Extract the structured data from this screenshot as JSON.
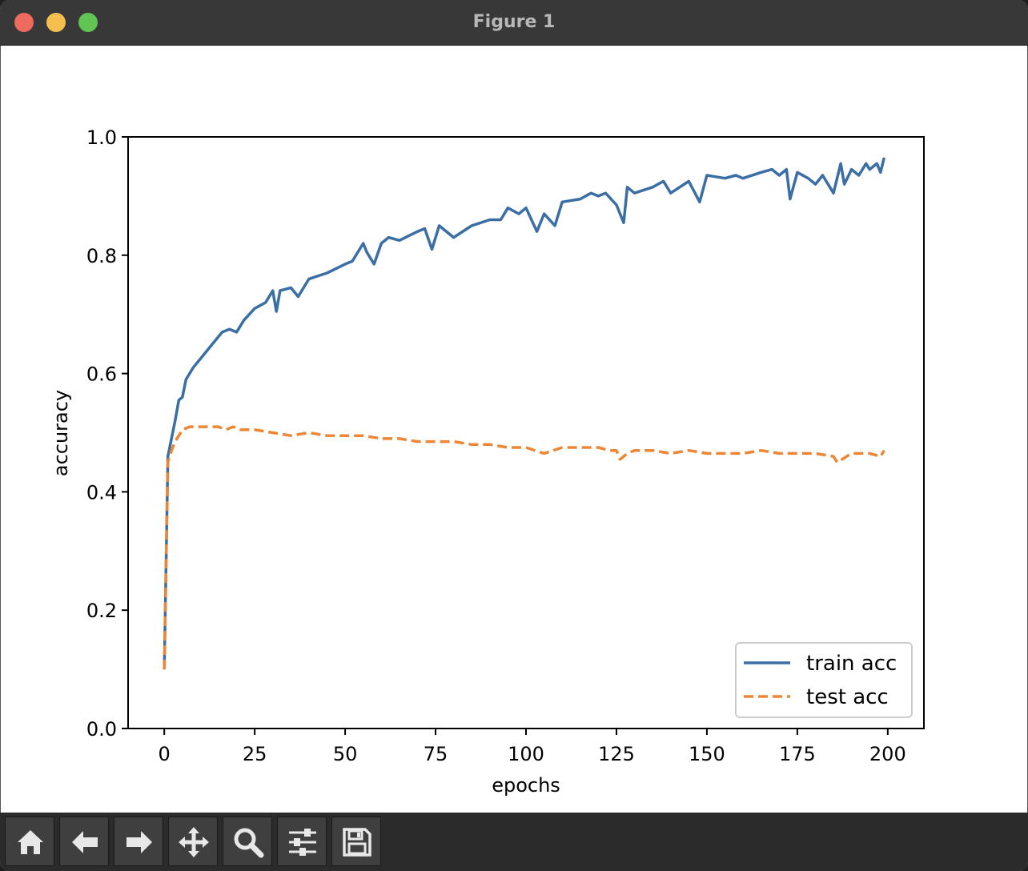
{
  "window": {
    "title": "Figure 1"
  },
  "toolbar": {
    "tools": [
      {
        "icon": "home-icon"
      },
      {
        "icon": "back-arrow-icon"
      },
      {
        "icon": "forward-arrow-icon"
      },
      {
        "icon": "pan-move-icon"
      },
      {
        "icon": "zoom-magnifier-icon"
      },
      {
        "icon": "configure-subplots-icon"
      },
      {
        "icon": "save-floppy-icon"
      }
    ]
  },
  "chart_data": {
    "type": "line",
    "title": "",
    "xlabel": "epochs",
    "ylabel": "accuracy",
    "xlim": [
      -10,
      210
    ],
    "ylim": [
      0.0,
      1.0
    ],
    "xticks": [
      0,
      25,
      50,
      75,
      100,
      125,
      150,
      175,
      200
    ],
    "yticks": [
      0.0,
      0.2,
      0.4,
      0.6,
      0.8,
      1.0
    ],
    "xtick_labels": [
      "0",
      "25",
      "50",
      "75",
      "100",
      "125",
      "150",
      "175",
      "200"
    ],
    "ytick_labels": [
      "0.0",
      "0.2",
      "0.4",
      "0.6",
      "0.8",
      "1.0"
    ],
    "grid": false,
    "legend_position": "lower-right",
    "series": [
      {
        "name": "train acc",
        "color": "#3a6ea5",
        "style": "solid",
        "x": [
          0,
          1,
          2,
          3,
          4,
          5,
          6,
          8,
          10,
          12,
          14,
          16,
          18,
          20,
          22,
          25,
          28,
          30,
          31,
          32,
          35,
          37,
          40,
          45,
          50,
          52,
          55,
          56,
          58,
          60,
          62,
          65,
          70,
          72,
          74,
          76,
          80,
          85,
          90,
          93,
          95,
          98,
          100,
          103,
          105,
          108,
          110,
          115,
          118,
          120,
          122,
          125,
          127,
          128,
          130,
          135,
          138,
          140,
          145,
          148,
          150,
          155,
          158,
          160,
          165,
          168,
          170,
          172,
          173,
          175,
          178,
          180,
          182,
          185,
          187,
          188,
          190,
          192,
          194,
          195,
          197,
          198,
          199
        ],
        "values": [
          0.1,
          0.46,
          0.49,
          0.52,
          0.555,
          0.56,
          0.59,
          0.61,
          0.625,
          0.64,
          0.655,
          0.67,
          0.675,
          0.67,
          0.69,
          0.71,
          0.72,
          0.74,
          0.705,
          0.74,
          0.745,
          0.73,
          0.76,
          0.77,
          0.785,
          0.79,
          0.82,
          0.805,
          0.785,
          0.82,
          0.83,
          0.825,
          0.84,
          0.845,
          0.81,
          0.85,
          0.83,
          0.85,
          0.86,
          0.86,
          0.88,
          0.87,
          0.88,
          0.84,
          0.87,
          0.85,
          0.89,
          0.895,
          0.905,
          0.9,
          0.905,
          0.885,
          0.855,
          0.915,
          0.905,
          0.915,
          0.925,
          0.905,
          0.925,
          0.89,
          0.935,
          0.93,
          0.935,
          0.93,
          0.94,
          0.945,
          0.935,
          0.945,
          0.895,
          0.94,
          0.93,
          0.92,
          0.935,
          0.905,
          0.955,
          0.92,
          0.945,
          0.935,
          0.955,
          0.945,
          0.955,
          0.94,
          0.965
        ]
      },
      {
        "name": "test acc",
        "color": "#ee8635",
        "style": "dashed",
        "x": [
          0,
          1,
          2,
          3,
          4,
          5,
          7,
          10,
          13,
          15,
          17,
          19,
          21,
          25,
          30,
          35,
          40,
          45,
          50,
          55,
          60,
          65,
          70,
          75,
          80,
          85,
          90,
          95,
          100,
          105,
          110,
          115,
          120,
          123,
          125,
          126,
          128,
          130,
          135,
          140,
          145,
          150,
          155,
          160,
          165,
          170,
          175,
          180,
          185,
          186,
          190,
          195,
          198,
          199
        ],
        "values": [
          0.1,
          0.45,
          0.47,
          0.485,
          0.495,
          0.505,
          0.51,
          0.51,
          0.51,
          0.51,
          0.505,
          0.51,
          0.505,
          0.505,
          0.5,
          0.495,
          0.5,
          0.495,
          0.495,
          0.495,
          0.49,
          0.49,
          0.485,
          0.485,
          0.485,
          0.48,
          0.48,
          0.475,
          0.475,
          0.465,
          0.475,
          0.475,
          0.475,
          0.47,
          0.47,
          0.455,
          0.465,
          0.47,
          0.47,
          0.465,
          0.47,
          0.465,
          0.465,
          0.465,
          0.47,
          0.465,
          0.465,
          0.465,
          0.46,
          0.45,
          0.465,
          0.465,
          0.46,
          0.47
        ]
      }
    ]
  }
}
